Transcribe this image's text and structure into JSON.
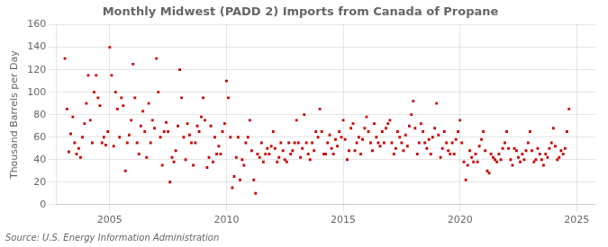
{
  "chart_data": {
    "type": "scatter",
    "title": "Monthly Midwest (PADD 2) Imports from Canada of Propane",
    "y_label": "Thousand Barrels per Day",
    "annotations": [
      "Source: U.S. Energy Information Administration"
    ],
    "color": "#CC0000",
    "marker": "square",
    "grid": true,
    "xlim": [
      2002.7,
      2025.8
    ],
    "ylim": [
      0,
      160
    ],
    "xticks": [
      2005,
      2010,
      2015,
      2020,
      2025
    ],
    "yticks": [
      0,
      20,
      40,
      60,
      80,
      100,
      120,
      140,
      160
    ],
    "x": [
      2003.08,
      2003.17,
      2003.25,
      2003.33,
      2003.42,
      2003.5,
      2003.58,
      2003.67,
      2003.75,
      2003.83,
      2003.92,
      2004.0,
      2004.08,
      2004.17,
      2004.25,
      2004.33,
      2004.42,
      2004.5,
      2004.58,
      2004.67,
      2004.75,
      2004.83,
      2004.92,
      2005.0,
      2005.08,
      2005.17,
      2005.25,
      2005.33,
      2005.42,
      2005.5,
      2005.58,
      2005.67,
      2005.75,
      2005.83,
      2005.92,
      2006.0,
      2006.08,
      2006.17,
      2006.25,
      2006.33,
      2006.42,
      2006.5,
      2006.58,
      2006.67,
      2006.75,
      2006.83,
      2006.92,
      2007.0,
      2007.08,
      2007.17,
      2007.25,
      2007.33,
      2007.42,
      2007.5,
      2007.58,
      2007.67,
      2007.75,
      2007.83,
      2007.92,
      2008.0,
      2008.08,
      2008.17,
      2008.25,
      2008.33,
      2008.42,
      2008.5,
      2008.58,
      2008.67,
      2008.75,
      2008.83,
      2008.92,
      2009.0,
      2009.08,
      2009.17,
      2009.25,
      2009.33,
      2009.42,
      2009.5,
      2009.58,
      2009.67,
      2009.75,
      2009.83,
      2009.92,
      2010.0,
      2010.08,
      2010.17,
      2010.25,
      2010.33,
      2010.42,
      2010.5,
      2010.58,
      2010.67,
      2010.75,
      2010.83,
      2010.92,
      2011.0,
      2011.08,
      2011.17,
      2011.25,
      2011.33,
      2011.42,
      2011.5,
      2011.58,
      2011.67,
      2011.75,
      2011.83,
      2011.92,
      2012.0,
      2012.08,
      2012.17,
      2012.25,
      2012.33,
      2012.42,
      2012.5,
      2012.58,
      2012.67,
      2012.75,
      2012.83,
      2012.92,
      2013.0,
      2013.08,
      2013.17,
      2013.25,
      2013.33,
      2013.42,
      2013.5,
      2013.58,
      2013.67,
      2013.75,
      2013.83,
      2013.92,
      2014.0,
      2014.08,
      2014.17,
      2014.25,
      2014.33,
      2014.42,
      2014.5,
      2014.58,
      2014.67,
      2014.75,
      2014.83,
      2014.92,
      2015.0,
      2015.08,
      2015.17,
      2015.25,
      2015.33,
      2015.42,
      2015.5,
      2015.58,
      2015.67,
      2015.75,
      2015.83,
      2015.92,
      2016.0,
      2016.08,
      2016.17,
      2016.25,
      2016.33,
      2016.42,
      2016.5,
      2016.58,
      2016.67,
      2016.75,
      2016.83,
      2016.92,
      2017.0,
      2017.08,
      2017.17,
      2017.25,
      2017.33,
      2017.42,
      2017.5,
      2017.58,
      2017.67,
      2017.75,
      2017.83,
      2017.92,
      2018.0,
      2018.08,
      2018.17,
      2018.25,
      2018.33,
      2018.42,
      2018.5,
      2018.58,
      2018.67,
      2018.75,
      2018.83,
      2018.92,
      2019.0,
      2019.08,
      2019.17,
      2019.25,
      2019.33,
      2019.42,
      2019.5,
      2019.58,
      2019.67,
      2019.75,
      2019.83,
      2019.92,
      2020.0,
      2020.08,
      2020.17,
      2020.25,
      2020.33,
      2020.42,
      2020.5,
      2020.58,
      2020.67,
      2020.75,
      2020.83,
      2020.92,
      2021.0,
      2021.08,
      2021.17,
      2021.25,
      2021.33,
      2021.42,
      2021.5,
      2021.58,
      2021.67,
      2021.75,
      2021.83,
      2021.92,
      2022.0,
      2022.08,
      2022.17,
      2022.25,
      2022.33,
      2022.42,
      2022.5,
      2022.58,
      2022.67,
      2022.75,
      2022.83,
      2022.92,
      2023.0,
      2023.08,
      2023.17,
      2023.25,
      2023.33,
      2023.42,
      2023.5,
      2023.58,
      2023.67,
      2023.75,
      2023.83,
      2023.92,
      2024.0,
      2024.08,
      2024.17,
      2024.25,
      2024.33,
      2024.42,
      2024.5,
      2024.58,
      2024.67
    ],
    "values": [
      130,
      85,
      47,
      63,
      78,
      55,
      45,
      50,
      42,
      60,
      72,
      90,
      115,
      75,
      55,
      100,
      115,
      95,
      88,
      55,
      60,
      53,
      65,
      140,
      115,
      52,
      100,
      85,
      60,
      95,
      88,
      30,
      55,
      62,
      75,
      125,
      95,
      55,
      45,
      70,
      83,
      65,
      42,
      90,
      55,
      75,
      68,
      130,
      100,
      60,
      35,
      65,
      73,
      65,
      20,
      42,
      38,
      48,
      70,
      120,
      95,
      60,
      40,
      72,
      62,
      55,
      35,
      55,
      70,
      65,
      78,
      95,
      75,
      33,
      42,
      70,
      38,
      60,
      45,
      52,
      45,
      65,
      72,
      110,
      95,
      60,
      15,
      25,
      42,
      60,
      22,
      40,
      35,
      55,
      60,
      75,
      48,
      22,
      10,
      45,
      42,
      55,
      38,
      45,
      50,
      45,
      52,
      65,
      50,
      38,
      42,
      55,
      48,
      40,
      38,
      55,
      45,
      48,
      55,
      75,
      55,
      42,
      50,
      80,
      55,
      45,
      40,
      55,
      48,
      65,
      60,
      85,
      65,
      45,
      45,
      55,
      62,
      50,
      45,
      58,
      52,
      65,
      60,
      75,
      58,
      40,
      48,
      68,
      72,
      48,
      55,
      60,
      45,
      58,
      68,
      78,
      65,
      55,
      48,
      72,
      60,
      55,
      52,
      65,
      55,
      68,
      72,
      75,
      55,
      45,
      50,
      65,
      60,
      55,
      48,
      62,
      52,
      70,
      80,
      92,
      68,
      45,
      55,
      72,
      65,
      55,
      50,
      58,
      45,
      60,
      68,
      90,
      62,
      42,
      50,
      65,
      55,
      48,
      45,
      55,
      45,
      58,
      65,
      75,
      55,
      38,
      22,
      35,
      48,
      42,
      38,
      45,
      38,
      52,
      58,
      65,
      48,
      30,
      28,
      45,
      42,
      40,
      38,
      45,
      40,
      50,
      55,
      65,
      50,
      40,
      35,
      50,
      48,
      42,
      38,
      45,
      40,
      48,
      55,
      65,
      48,
      38,
      40,
      50,
      45,
      40,
      35,
      45,
      42,
      50,
      55,
      68,
      52,
      40,
      42,
      48,
      45,
      50,
      65,
      85
    ]
  }
}
